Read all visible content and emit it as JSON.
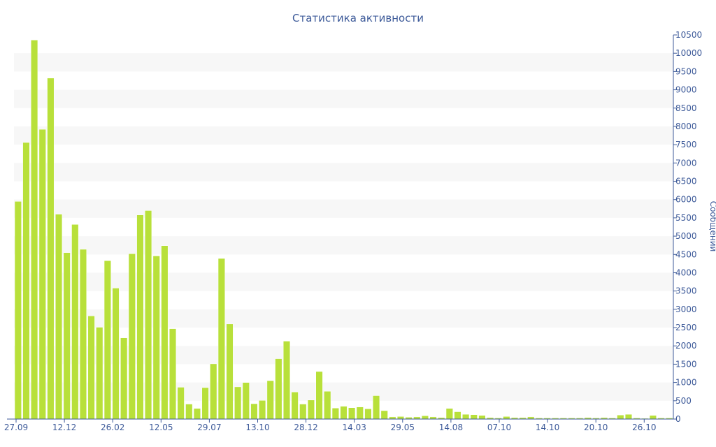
{
  "chart_data": {
    "type": "bar",
    "title": "Статистика активности",
    "ylabel": "Сообщений",
    "xlabel": "",
    "ylim": [
      0,
      10500
    ],
    "y_ticks": [
      0,
      500,
      1000,
      1500,
      2000,
      2500,
      3000,
      3500,
      4000,
      4500,
      5000,
      5500,
      6000,
      6500,
      7000,
      7500,
      8000,
      8500,
      9000,
      9500,
      10000,
      10500
    ],
    "x_tick_labels": [
      "27.09",
      "12.12",
      "26.02",
      "12.05",
      "29.07",
      "13.10",
      "28.12",
      "14.03",
      "29.05",
      "14.08",
      "07.10",
      "14.10",
      "20.10",
      "26.10"
    ],
    "values": [
      5950,
      7560,
      10360,
      7920,
      9320,
      5600,
      4550,
      5320,
      4640,
      2820,
      2510,
      4330,
      3580,
      2220,
      4520,
      5580,
      5700,
      4460,
      4740,
      2470,
      870,
      410,
      290,
      860,
      1510,
      4390,
      2600,
      880,
      1000,
      420,
      510,
      1050,
      1650,
      2130,
      740,
      410,
      520,
      1300,
      760,
      300,
      350,
      310,
      330,
      280,
      640,
      230,
      60,
      70,
      50,
      60,
      90,
      60,
      40,
      290,
      200,
      130,
      120,
      100,
      40,
      30,
      70,
      40,
      40,
      60,
      30,
      30,
      30,
      30,
      30,
      30,
      40,
      30,
      40,
      30,
      110,
      130,
      30,
      20,
      100,
      30,
      30
    ],
    "grid": "horizontal bands",
    "legend": "none",
    "colors": {
      "bar": "#b8e03a",
      "bar_stroke": "#ffffff",
      "band": "#f7f7f7",
      "axis": "#3d5a99",
      "text": "#3d5a99"
    }
  }
}
